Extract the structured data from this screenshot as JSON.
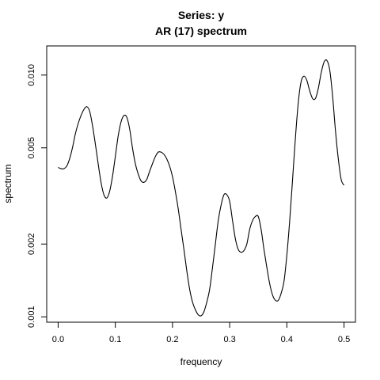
{
  "chart_data": {
    "type": "line",
    "title": "Series: y",
    "subtitle": "AR (17) spectrum",
    "xlabel": "frequency",
    "ylabel": "spectrum",
    "xlim": [
      -0.02,
      0.52
    ],
    "ylim": [
      0.00095,
      0.0132
    ],
    "y_scale": "log",
    "grid": false,
    "x_ticks": [
      {
        "value": 0.0,
        "label": "0.0"
      },
      {
        "value": 0.1,
        "label": "0.1"
      },
      {
        "value": 0.2,
        "label": "0.2"
      },
      {
        "value": 0.3,
        "label": "0.3"
      },
      {
        "value": 0.4,
        "label": "0.4"
      },
      {
        "value": 0.5,
        "label": "0.5"
      }
    ],
    "y_ticks": [
      {
        "value": 0.001,
        "label": "0.001"
      },
      {
        "value": 0.002,
        "label": "0.002"
      },
      {
        "value": 0.005,
        "label": "0.005"
      },
      {
        "value": 0.01,
        "label": "0.010"
      }
    ],
    "series": [
      {
        "x": [
          0.0,
          0.005,
          0.01,
          0.015,
          0.02,
          0.025,
          0.03,
          0.035,
          0.04,
          0.045,
          0.05,
          0.055,
          0.06,
          0.065,
          0.07,
          0.075,
          0.08,
          0.085,
          0.09,
          0.095,
          0.1,
          0.105,
          0.11,
          0.115,
          0.12,
          0.125,
          0.13,
          0.135,
          0.14,
          0.145,
          0.15,
          0.155,
          0.16,
          0.165,
          0.17,
          0.175,
          0.18,
          0.185,
          0.19,
          0.195,
          0.2,
          0.205,
          0.21,
          0.215,
          0.22,
          0.225,
          0.23,
          0.235,
          0.24,
          0.245,
          0.25,
          0.255,
          0.26,
          0.265,
          0.27,
          0.275,
          0.28,
          0.285,
          0.29,
          0.295,
          0.3,
          0.305,
          0.31,
          0.315,
          0.32,
          0.325,
          0.33,
          0.335,
          0.34,
          0.345,
          0.35,
          0.355,
          0.36,
          0.365,
          0.37,
          0.375,
          0.38,
          0.385,
          0.39,
          0.395,
          0.4,
          0.405,
          0.41,
          0.415,
          0.42,
          0.425,
          0.43,
          0.435,
          0.44,
          0.445,
          0.45,
          0.455,
          0.46,
          0.465,
          0.47,
          0.475,
          0.48,
          0.485,
          0.49,
          0.495,
          0.5
        ],
        "y": [
          0.00415,
          0.0041,
          0.0041,
          0.0042,
          0.0045,
          0.005,
          0.0057,
          0.0063,
          0.0068,
          0.0072,
          0.0074,
          0.0071,
          0.0062,
          0.0052,
          0.0043,
          0.0036,
          0.0032,
          0.0031,
          0.0033,
          0.0038,
          0.0046,
          0.0056,
          0.0064,
          0.0068,
          0.0067,
          0.006,
          0.005,
          0.0043,
          0.0039,
          0.00365,
          0.0036,
          0.0037,
          0.004,
          0.0043,
          0.0046,
          0.0048,
          0.0048,
          0.0047,
          0.0045,
          0.0042,
          0.0038,
          0.0033,
          0.0028,
          0.0023,
          0.0019,
          0.00155,
          0.0013,
          0.00115,
          0.00107,
          0.00102,
          0.00101,
          0.00105,
          0.00115,
          0.0013,
          0.0016,
          0.002,
          0.0025,
          0.0029,
          0.0032,
          0.0032,
          0.003,
          0.0025,
          0.0021,
          0.0019,
          0.00185,
          0.00188,
          0.002,
          0.0023,
          0.0025,
          0.0026,
          0.0026,
          0.0023,
          0.0019,
          0.0016,
          0.00137,
          0.00123,
          0.00117,
          0.00117,
          0.00125,
          0.0014,
          0.0018,
          0.0025,
          0.0037,
          0.0055,
          0.0077,
          0.0094,
          0.0099,
          0.0095,
          0.0086,
          0.008,
          0.008,
          0.0088,
          0.0102,
          0.0113,
          0.0115,
          0.0105,
          0.0082,
          0.0059,
          0.0045,
          0.0037,
          0.0035
        ]
      }
    ]
  }
}
